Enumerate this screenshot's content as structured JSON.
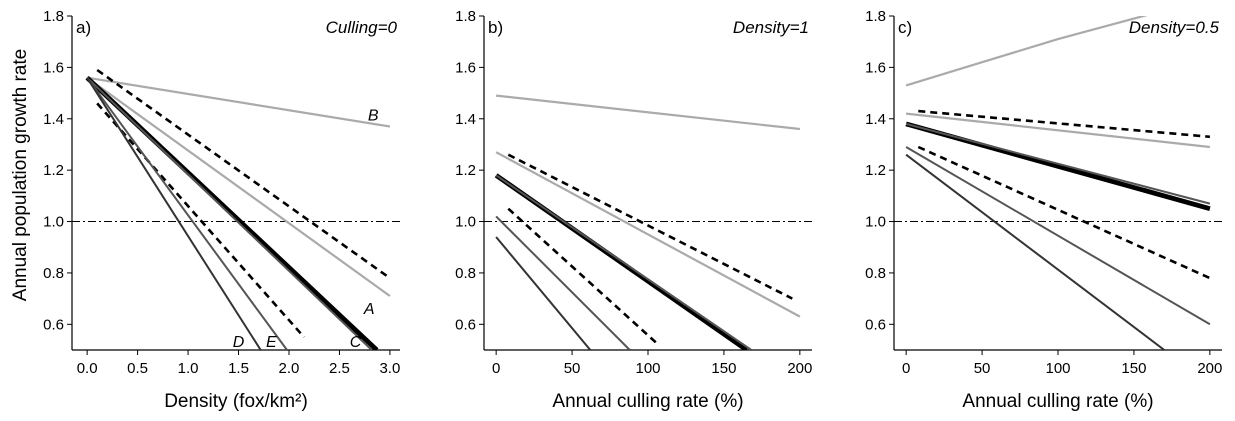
{
  "ylabel": "Annual population growth rate",
  "colors": {
    "axis": "#000000",
    "dark": "#333333",
    "mid": "#555555",
    "light": "#aaaaaa",
    "thick": "#000000",
    "dashed": "#000000",
    "reference": "#000000"
  },
  "chart_data": [
    {
      "type": "line",
      "panel": "a)",
      "annotation": "Culling=0",
      "xlabel": "Density (fox/km²)",
      "xlim": [
        -0.15,
        3.1
      ],
      "ylim": [
        0.5,
        1.8
      ],
      "xticks": [
        "0.0",
        "0.5",
        "1.0",
        "1.5",
        "2.0",
        "2.5",
        "3.0"
      ],
      "yticks": [
        "0.6",
        "0.8",
        "1.0",
        "1.2",
        "1.4",
        "1.6",
        "1.8"
      ],
      "reference_y": 1.0,
      "series": [
        {
          "style": "light",
          "label": "B",
          "x": [
            0,
            3
          ],
          "y": [
            1.56,
            1.37
          ]
        },
        {
          "style": "light",
          "label": "A",
          "x": [
            0,
            3
          ],
          "y": [
            1.56,
            0.71
          ]
        },
        {
          "style": "dashed",
          "x": [
            0.1,
            3
          ],
          "y": [
            1.59,
            0.78
          ]
        },
        {
          "style": "thick",
          "label": "C",
          "x": [
            0,
            2.87
          ],
          "y": [
            1.56,
            0.5
          ]
        },
        {
          "style": "mid",
          "x": [
            0,
            2.82
          ],
          "y": [
            1.56,
            0.5
          ]
        },
        {
          "style": "dashed",
          "x": [
            0.1,
            2.15
          ],
          "y": [
            1.46,
            0.55
          ]
        },
        {
          "style": "mid",
          "label": "E",
          "x": [
            0,
            1.98
          ],
          "y": [
            1.56,
            0.5
          ]
        },
        {
          "style": "dark",
          "label": "D",
          "x": [
            0,
            1.72
          ],
          "y": [
            1.56,
            0.5
          ]
        }
      ]
    },
    {
      "type": "line",
      "panel": "b)",
      "annotation": "Density=1",
      "xlabel": "Annual culling rate (%)",
      "xlim": [
        -8,
        208
      ],
      "ylim": [
        0.5,
        1.8
      ],
      "xticks": [
        "0",
        "50",
        "100",
        "150",
        "200"
      ],
      "yticks": [
        "0.6",
        "0.8",
        "1.0",
        "1.2",
        "1.4",
        "1.6",
        "1.8"
      ],
      "reference_y": 1.0,
      "series": [
        {
          "style": "light",
          "x": [
            0,
            200
          ],
          "y": [
            1.49,
            1.36
          ]
        },
        {
          "style": "light",
          "x": [
            0,
            200
          ],
          "y": [
            1.27,
            0.63
          ]
        },
        {
          "style": "dashed",
          "x": [
            8,
            195
          ],
          "y": [
            1.26,
            0.7
          ]
        },
        {
          "style": "thick",
          "x": [
            0,
            165
          ],
          "y": [
            1.18,
            0.5
          ]
        },
        {
          "style": "mid",
          "x": [
            0,
            168
          ],
          "y": [
            1.18,
            0.5
          ]
        },
        {
          "style": "dashed",
          "x": [
            8,
            107
          ],
          "y": [
            1.05,
            0.52
          ]
        },
        {
          "style": "mid",
          "x": [
            0,
            88
          ],
          "y": [
            1.02,
            0.5
          ]
        },
        {
          "style": "dark",
          "x": [
            0,
            62
          ],
          "y": [
            0.94,
            0.5
          ]
        }
      ]
    },
    {
      "type": "line",
      "panel": "c)",
      "annotation": "Density=0.5",
      "xlabel": "Annual culling rate (%)",
      "xlim": [
        -8,
        208
      ],
      "ylim": [
        0.5,
        1.8
      ],
      "xticks": [
        "0",
        "50",
        "100",
        "150",
        "200"
      ],
      "yticks": [
        "0.6",
        "0.8",
        "1.0",
        "1.2",
        "1.4",
        "1.6",
        "1.8"
      ],
      "reference_y": 1.0,
      "series": [
        {
          "style": "light",
          "x": [
            0,
            50,
            100,
            150,
            200
          ],
          "y": [
            1.53,
            1.62,
            1.71,
            1.79,
            1.87
          ]
        },
        {
          "style": "light",
          "x": [
            0,
            200
          ],
          "y": [
            1.42,
            1.29
          ]
        },
        {
          "style": "dashed",
          "x": [
            8,
            200
          ],
          "y": [
            1.43,
            1.33
          ]
        },
        {
          "style": "thick",
          "x": [
            0,
            200
          ],
          "y": [
            1.38,
            1.05
          ]
        },
        {
          "style": "mid",
          "x": [
            0,
            200
          ],
          "y": [
            1.38,
            1.07
          ]
        },
        {
          "style": "dashed",
          "x": [
            8,
            200
          ],
          "y": [
            1.29,
            0.78
          ]
        },
        {
          "style": "mid",
          "x": [
            0,
            200
          ],
          "y": [
            1.29,
            0.6
          ]
        },
        {
          "style": "dark",
          "x": [
            0,
            170
          ],
          "y": [
            1.26,
            0.5
          ]
        }
      ]
    }
  ]
}
